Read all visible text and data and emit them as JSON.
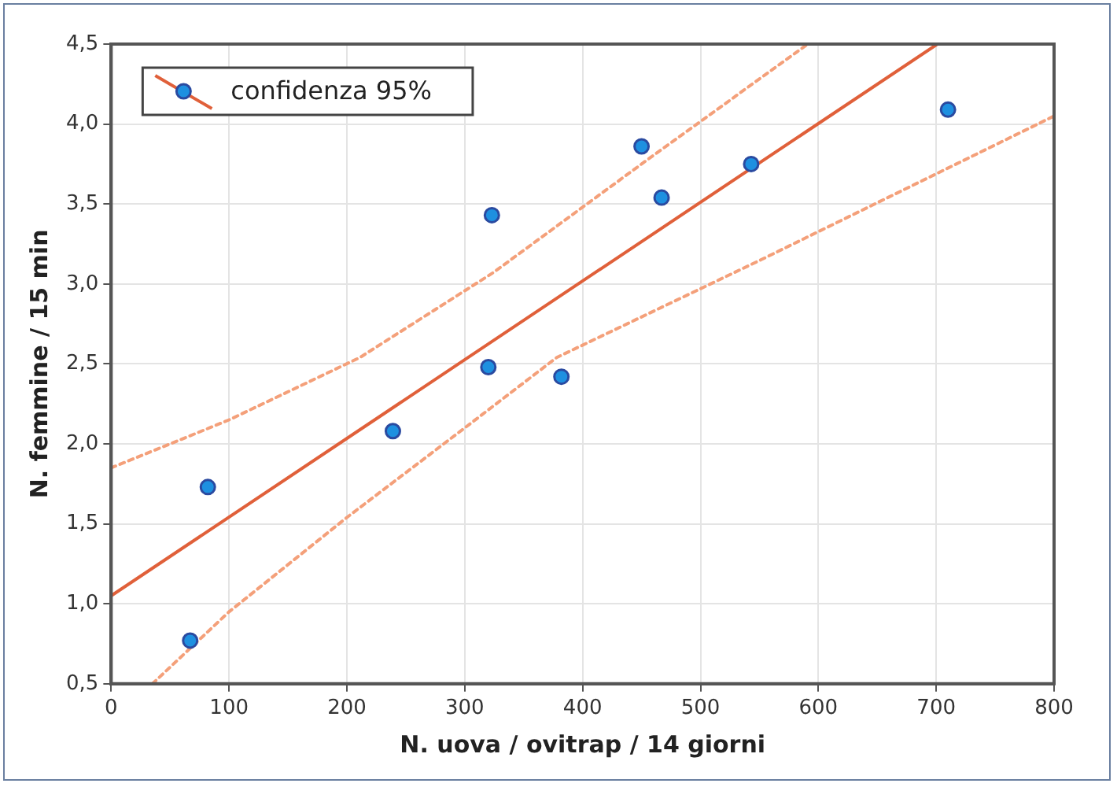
{
  "chart_data": {
    "type": "scatter",
    "xlabel": "N. uova / ovitrap / 14 giorni",
    "ylabel": "N. femmine / 15 min",
    "xlim": [
      0,
      800
    ],
    "xticks": [
      0,
      100,
      200,
      300,
      400,
      500,
      600,
      700,
      800
    ],
    "ylim": [
      0.5,
      4.5
    ],
    "yticks": [
      {
        "value": 0.5,
        "label": "0,5"
      },
      {
        "value": 1,
        "label": "1,0"
      },
      {
        "value": 1.5,
        "label": "1,5"
      },
      {
        "value": 2,
        "label": "2,0"
      },
      {
        "value": 2.5,
        "label": "2,5"
      },
      {
        "value": 3,
        "label": "3,0"
      },
      {
        "value": 3.5,
        "label": "3,5"
      },
      {
        "value": 4,
        "label": "4,0"
      },
      {
        "value": 4.5,
        "label": "4,5"
      }
    ],
    "grid": true,
    "legend": "top left",
    "series": [
      {
        "name": "confidenza 95%",
        "marker": "circle",
        "color": "#1e90e0",
        "x": [
          67,
          82,
          239,
          320,
          323,
          382,
          450,
          467,
          543,
          710
        ],
        "values": [
          0.77,
          1.73,
          2.08,
          2.48,
          3.43,
          2.42,
          3.86,
          3.54,
          3.75,
          4.09
        ]
      },
      {
        "type": "line",
        "marker": "none",
        "color": "#e0603a",
        "line_style": "solid",
        "x": [
          0,
          701
        ],
        "values": [
          1.05,
          4.5
        ]
      },
      {
        "type": "line",
        "marker": "none",
        "color": "#f4a07a",
        "line_style": "dotted",
        "x": [
          0,
          100,
          211,
          324,
          450,
          591
        ],
        "values": [
          1.85,
          2.15,
          2.54,
          3.07,
          3.75,
          4.5
        ]
      },
      {
        "type": "line",
        "marker": "none",
        "color": "#f4a07a",
        "line_style": "dotted",
        "x": [
          35,
          100,
          200,
          300,
          378,
          551,
          800
        ],
        "values": [
          0.5,
          0.95,
          1.54,
          2.1,
          2.54,
          3.15,
          4.05
        ]
      }
    ]
  }
}
